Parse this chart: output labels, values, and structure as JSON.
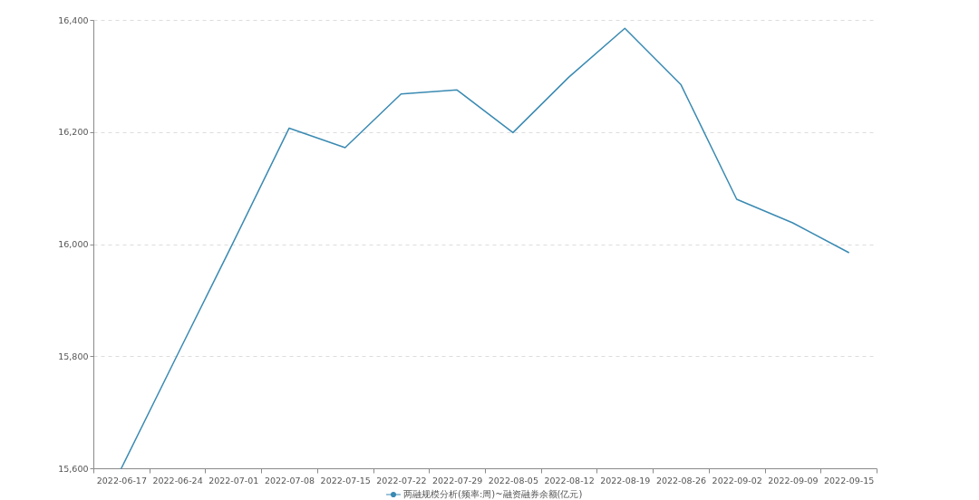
{
  "chart_data": {
    "type": "line",
    "categories": [
      "2022-06-17",
      "2022-06-24",
      "2022-07-01",
      "2022-07-08",
      "2022-07-15",
      "2022-07-22",
      "2022-07-29",
      "2022-08-05",
      "2022-08-12",
      "2022-08-19",
      "2022-08-26",
      "2022-09-02",
      "2022-09-09",
      "2022-09-15"
    ],
    "series": [
      {
        "name": "两融规模分析(频率:周)~融资融券余额(亿元)",
        "color": "#3a8ab2",
        "values": [
          15600,
          15802,
          16003,
          16207,
          16172,
          16268,
          16275,
          16199,
          16298,
          16385,
          16285,
          16080,
          16038,
          15985
        ]
      }
    ],
    "ylim": [
      15600,
      16400
    ],
    "yticks": [
      {
        "value": 15600,
        "label": "15,600"
      },
      {
        "value": 15800,
        "label": "15,800"
      },
      {
        "value": 16000,
        "label": "16,000"
      },
      {
        "value": 16200,
        "label": "16,200"
      },
      {
        "value": 16400,
        "label": "16,400"
      }
    ],
    "grid": "y",
    "legend": "bottom"
  }
}
